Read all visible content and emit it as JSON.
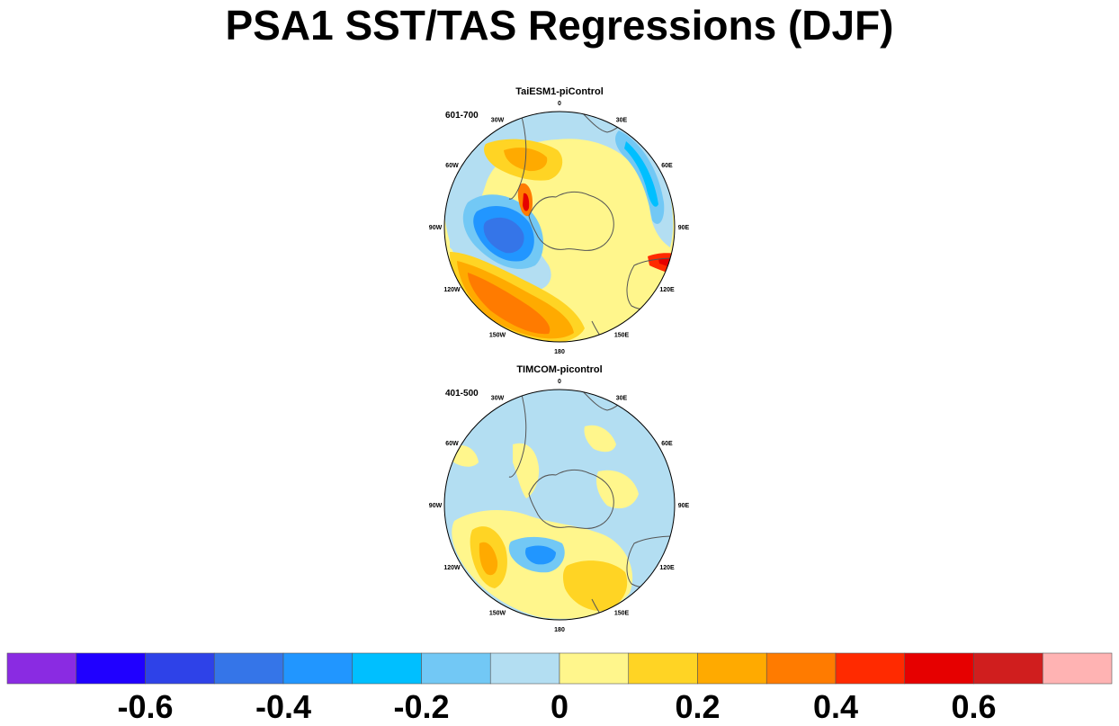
{
  "figure": {
    "title": "PSA1 SST/TAS Regressions (DJF)"
  },
  "chart_data": [
    {
      "type": "heatmap",
      "projection": "south polar stereographic",
      "title": "TaiESM1-piControl",
      "period": "601-700",
      "lon_labels": [
        "0",
        "30E",
        "60E",
        "90E",
        "120E",
        "150E",
        "180",
        "150W",
        "120W",
        "90W",
        "60W",
        "30W"
      ],
      "features": [
        {
          "name": "warm anomaly, South Pacific (150W-180)",
          "value": 0.4
        },
        {
          "name": "cold anomaly, Amundsen Sea (90W-120W)",
          "value": -0.4
        },
        {
          "name": "cold anomaly, Indian Ocean (30E-90E)",
          "value": -0.2
        },
        {
          "name": "warm anomaly, Southwest Atlantic (30W-60W)",
          "value": 0.2
        },
        {
          "name": "warm anomaly, Australia west coast (110E)",
          "value": 0.6
        }
      ]
    },
    {
      "type": "heatmap",
      "projection": "south polar stereographic",
      "title": "TIMCOM-picontrol",
      "period": "401-500",
      "lon_labels": [
        "0",
        "30E",
        "60E",
        "90E",
        "120E",
        "150E",
        "180",
        "150W",
        "120W",
        "90W",
        "60W",
        "30W"
      ],
      "features": [
        {
          "name": "warm anomaly, South Pacific (120W-150W)",
          "value": 0.2
        },
        {
          "name": "cold anomaly, Ross Sea (150W-180)",
          "value": -0.2
        },
        {
          "name": "warm anomaly, New Zealand sector (150E-180)",
          "value": 0.2
        }
      ]
    }
  ],
  "colorbar": {
    "levels": [
      -0.7,
      -0.6,
      -0.5,
      -0.4,
      -0.3,
      -0.2,
      -0.1,
      0,
      0.1,
      0.2,
      0.3,
      0.4,
      0.5,
      0.6,
      0.7
    ],
    "colors": [
      "#8A2BE2",
      "#2000FF",
      "#2E42E8",
      "#3575E8",
      "#2196FF",
      "#00BFFF",
      "#72C8F5",
      "#B3DEF2",
      "#FFF68C",
      "#FFD424",
      "#FFAA00",
      "#FF7B00",
      "#FF2A00",
      "#E60000",
      "#D01E1E",
      "#FFB3B3"
    ],
    "tick_labels": [
      "-0.6",
      "-0.4",
      "-0.2",
      "0",
      "0.2",
      "0.4",
      "0.6"
    ],
    "tick_values": [
      -0.6,
      -0.4,
      -0.2,
      0,
      0.2,
      0.4,
      0.6
    ]
  }
}
